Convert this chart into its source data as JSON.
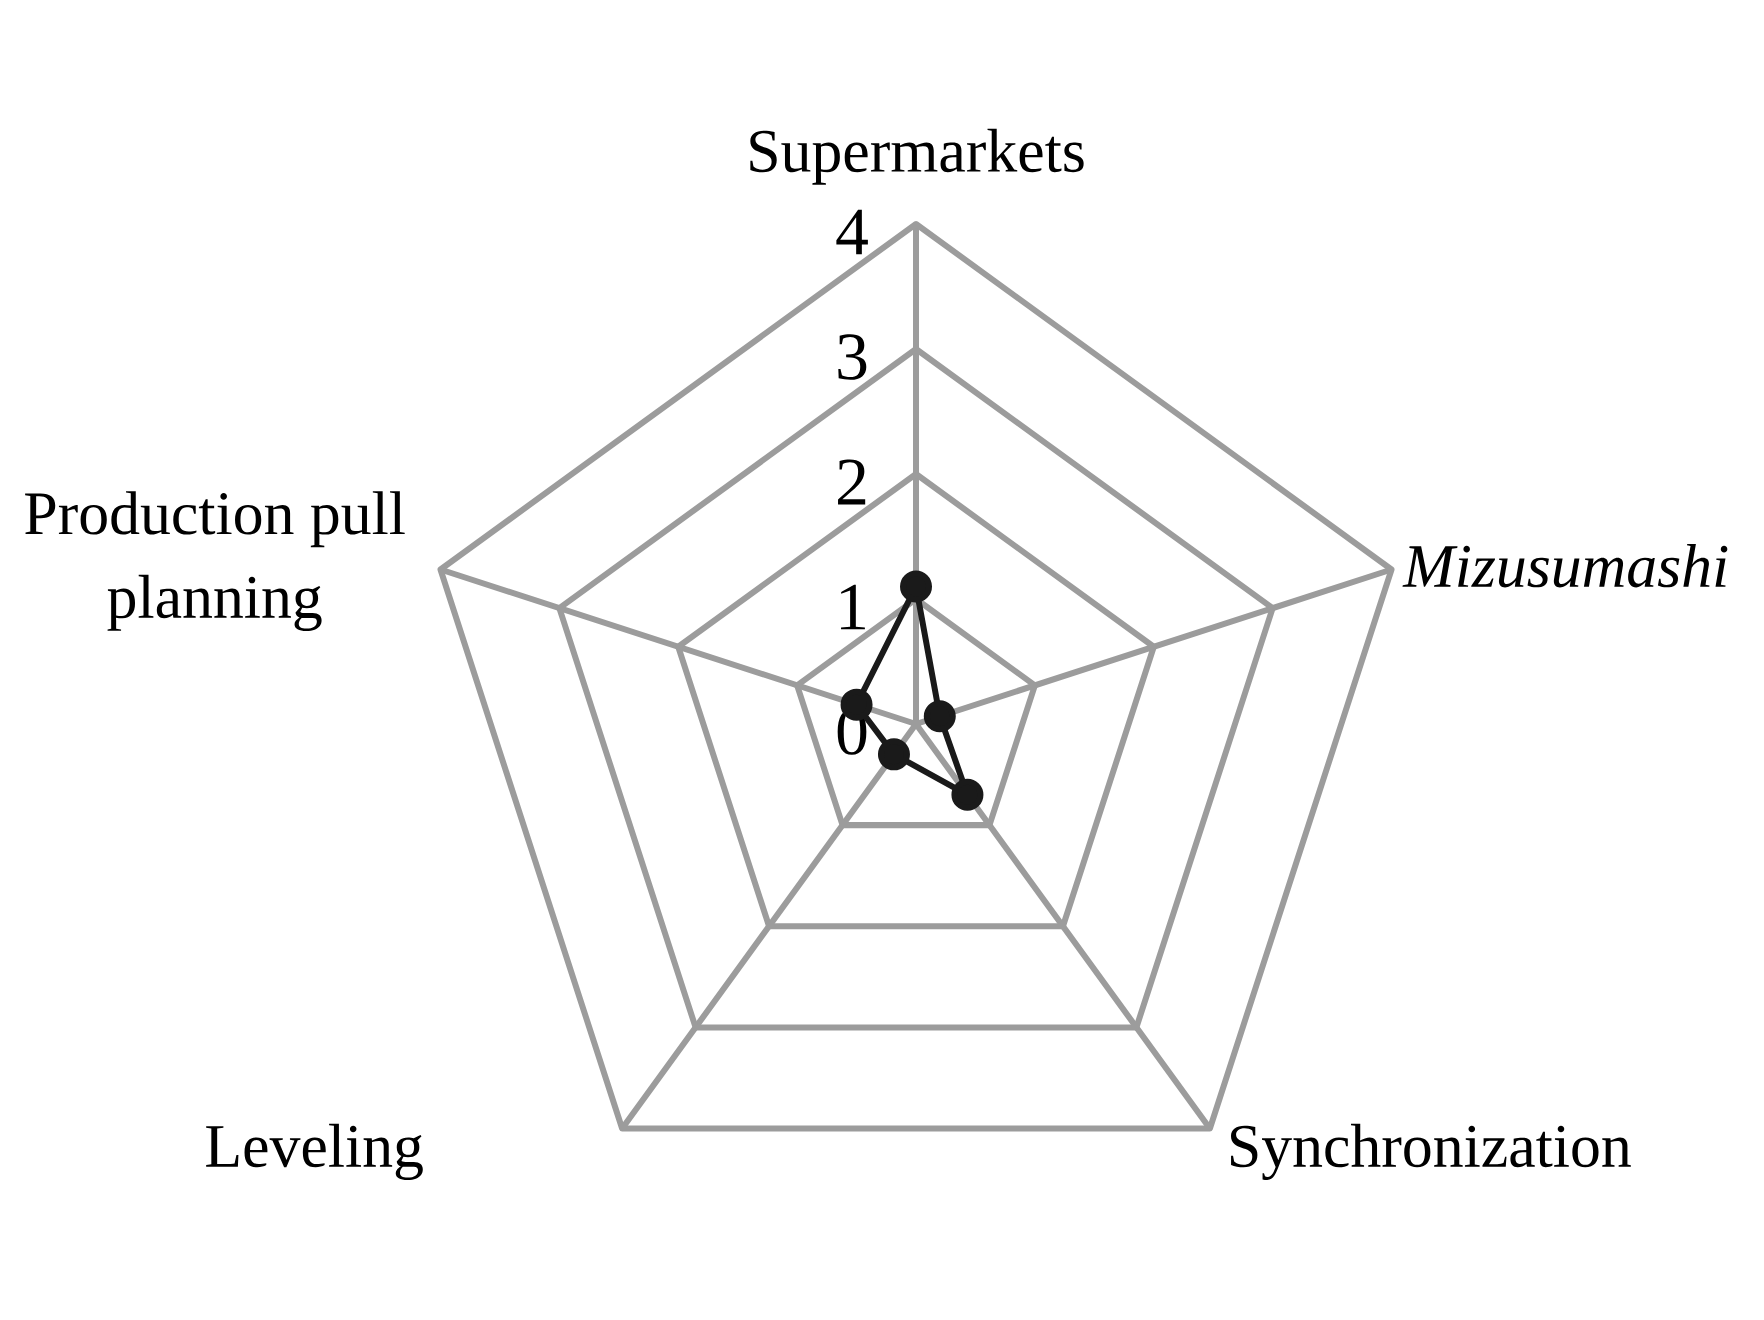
{
  "chart_data": {
    "type": "radar",
    "categories": [
      "Supermarkets",
      "*Mizusumashi*",
      "Synchronization",
      "Leveling",
      "Production pull planning"
    ],
    "series": [
      {
        "color": "#1a1a1a",
        "values": [
          1.1,
          0.2,
          0.7,
          0.3,
          0.5
        ]
      }
    ],
    "ylim": [
      0,
      4
    ],
    "yticks": [
      0,
      1,
      2,
      3,
      4
    ],
    "grid": true,
    "marker": "circle",
    "line_style": "solid"
  }
}
